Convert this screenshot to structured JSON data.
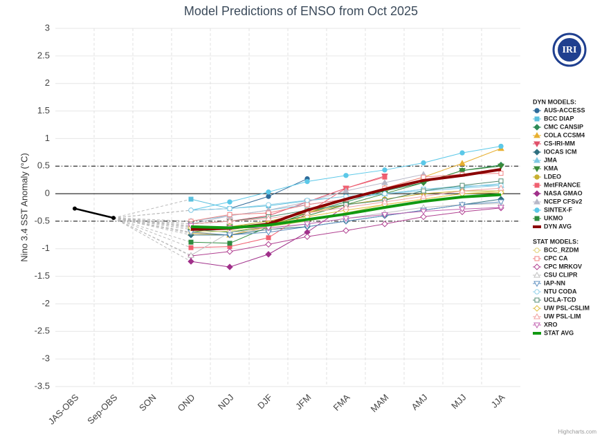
{
  "chart_data": {
    "type": "line",
    "title": "Model Predictions of ENSO from Oct 2025",
    "y_label": "Nino 3.4 SST Anomaly (°C)",
    "credit": "Highcharts.com",
    "logo_text": "IRI",
    "categories": [
      "JAS-OBS",
      "Sep-OBS",
      "SON",
      "OND",
      "NDJ",
      "DJF",
      "JFM",
      "FMA",
      "MAM",
      "AMJ",
      "MJJ",
      "JJA"
    ],
    "ylim": [
      -3.5,
      3
    ],
    "yticks": [
      3,
      2.5,
      2,
      1.5,
      1,
      0.5,
      0,
      -0.5,
      -1,
      -1.5,
      -2,
      -2.5,
      -3,
      -3.5
    ],
    "grid": true,
    "plot_lines": [
      {
        "value": 0,
        "style": "solid"
      },
      {
        "value": 0.5,
        "style": "dashdot"
      },
      {
        "value": -0.5,
        "style": "dashdot"
      }
    ],
    "observed": {
      "color": "#000000",
      "values": [
        -0.27,
        -0.44,
        null,
        null,
        null,
        null,
        null,
        null,
        null,
        null,
        null,
        null
      ]
    },
    "series_groups": [
      {
        "title": "DYN MODELS:",
        "series": [
          {
            "name": "AUS-ACCESS",
            "color": "#2f6b9a",
            "marker": "circle",
            "filled": true,
            "values": [
              null,
              null,
              null,
              -0.3,
              -0.27,
              -0.05,
              0.27,
              null,
              null,
              null,
              null,
              null
            ]
          },
          {
            "name": "BCC DIAP",
            "color": "#5bc0de",
            "marker": "square",
            "filled": true,
            "values": [
              null,
              null,
              null,
              -0.1,
              -0.27,
              -0.22,
              -0.13,
              -0.05,
              0.0,
              0.08,
              0.12,
              0.18
            ]
          },
          {
            "name": "CMC CANSIP",
            "color": "#2e8b57",
            "marker": "diamond",
            "filled": true,
            "values": [
              null,
              null,
              null,
              -0.65,
              -0.7,
              -0.6,
              -0.35,
              -0.15,
              0.05,
              0.2,
              0.42,
              0.52
            ]
          },
          {
            "name": "COLA CCSM4",
            "color": "#e8b030",
            "marker": "triangle",
            "filled": true,
            "values": [
              null,
              null,
              null,
              -0.72,
              -0.75,
              -0.6,
              -0.35,
              -0.1,
              0.1,
              0.3,
              0.55,
              0.82
            ]
          },
          {
            "name": "CS-IRI-MM",
            "color": "#e0506a",
            "marker": "triangle-down",
            "filled": true,
            "values": [
              null,
              null,
              null,
              -0.55,
              -0.5,
              -0.4,
              -0.15,
              0.1,
              0.32,
              null,
              null,
              null
            ]
          },
          {
            "name": "IOCAS ICM",
            "color": "#307080",
            "marker": "diamond",
            "filled": true,
            "values": [
              null,
              null,
              null,
              -0.75,
              -0.75,
              -0.65,
              -0.6,
              -0.5,
              -0.4,
              -0.3,
              -0.2,
              -0.1
            ]
          },
          {
            "name": "JMA",
            "color": "#7ec8e3",
            "marker": "triangle",
            "filled": true,
            "values": [
              null,
              null,
              null,
              -0.5,
              -0.4,
              -0.3,
              -0.2,
              -0.1,
              0.0,
              0.05,
              0.1,
              0.15
            ]
          },
          {
            "name": "KMA",
            "color": "#3a8a3a",
            "marker": "triangle-down",
            "filled": true,
            "values": [
              null,
              null,
              null,
              -0.7,
              -0.6,
              -0.55,
              -0.4,
              -0.2,
              0.0,
              0.2,
              0.42,
              0.5
            ]
          },
          {
            "name": "LDEO",
            "color": "#c8b030",
            "marker": "circle",
            "filled": true,
            "values": [
              null,
              null,
              null,
              -0.6,
              -0.6,
              -0.5,
              -0.35,
              -0.2,
              -0.1,
              0.0,
              0.05,
              0.05
            ]
          },
          {
            "name": "MetFRANCE",
            "color": "#f06070",
            "marker": "square",
            "filled": true,
            "values": [
              null,
              null,
              null,
              -0.98,
              -0.96,
              -0.8,
              -0.35,
              0.1,
              0.3,
              null,
              null,
              null
            ]
          },
          {
            "name": "NASA GMAO",
            "color": "#a0308a",
            "marker": "diamond",
            "filled": true,
            "values": [
              null,
              null,
              null,
              -1.23,
              -1.33,
              -1.1,
              -0.7,
              -0.22,
              null,
              null,
              null,
              null
            ]
          },
          {
            "name": "NCEP CFSv2",
            "color": "#b8b8c8",
            "marker": "triangle",
            "filled": true,
            "values": [
              null,
              null,
              null,
              -0.55,
              -0.4,
              -0.3,
              -0.15,
              0.05,
              0.2,
              0.35,
              null,
              null
            ]
          },
          {
            "name": "SINTEX-F",
            "color": "#5bc8e8",
            "marker": "circle",
            "filled": true,
            "values": [
              null,
              null,
              null,
              -0.3,
              -0.15,
              0.03,
              0.22,
              0.33,
              0.43,
              0.56,
              0.74,
              0.86
            ]
          },
          {
            "name": "UKMO",
            "color": "#2e8b3e",
            "marker": "square",
            "filled": true,
            "values": [
              null,
              null,
              null,
              -0.88,
              -0.9,
              -0.6,
              -0.35,
              null,
              null,
              null,
              null,
              null
            ]
          },
          {
            "name": "DYN AVG",
            "color": "#8b0000",
            "marker": "none",
            "width": 4,
            "values": [
              null,
              null,
              null,
              -0.65,
              -0.63,
              -0.55,
              -0.3,
              -0.1,
              0.08,
              0.24,
              0.33,
              0.44
            ]
          }
        ]
      },
      {
        "title": "STAT MODELS:",
        "series": [
          {
            "name": "BCC_RZDM",
            "color": "#e0d070",
            "marker": "circle",
            "filled": false,
            "values": [
              null,
              null,
              null,
              -0.7,
              -0.68,
              -0.6,
              -0.5,
              -0.35,
              -0.2,
              -0.1,
              0.0,
              0.05
            ]
          },
          {
            "name": "CPC CA",
            "color": "#f08080",
            "marker": "square",
            "filled": false,
            "values": [
              null,
              null,
              null,
              -0.5,
              -0.38,
              -0.35,
              -0.2,
              -0.1,
              0.1,
              0.3,
              0.35,
              0.37
            ]
          },
          {
            "name": "CPC MRKOV",
            "color": "#b04090",
            "marker": "diamond",
            "filled": false,
            "values": [
              null,
              null,
              null,
              -1.13,
              -1.05,
              -0.92,
              -0.78,
              -0.67,
              -0.55,
              -0.42,
              -0.33,
              -0.26
            ]
          },
          {
            "name": "CSU CLIPR",
            "color": "#c0c0c0",
            "marker": "triangle",
            "filled": false,
            "values": [
              null,
              null,
              null,
              -1.12,
              -0.7,
              -0.65,
              -0.55,
              -0.45,
              -0.35,
              -0.25,
              -0.2,
              -0.18
            ]
          },
          {
            "name": "IAP-NN",
            "color": "#6090c0",
            "marker": "triangle-down",
            "filled": false,
            "values": [
              null,
              null,
              null,
              -0.7,
              -0.75,
              -0.7,
              -0.6,
              -0.5,
              -0.4,
              -0.3,
              -0.2,
              -0.15
            ]
          },
          {
            "name": "NTU CODA",
            "color": "#90d0e8",
            "marker": "circle",
            "filled": false,
            "values": [
              null,
              null,
              null,
              -0.3,
              -0.27,
              -0.2,
              -0.12,
              -0.05,
              0.0,
              0.08,
              0.14,
              0.15
            ]
          },
          {
            "name": "UCLA-TCD",
            "color": "#508a70",
            "marker": "square",
            "filled": false,
            "values": [
              null,
              null,
              null,
              -0.55,
              -0.5,
              -0.42,
              -0.3,
              -0.2,
              -0.12,
              0.05,
              0.15,
              0.23
            ]
          },
          {
            "name": "UW PSL-CSLIM",
            "color": "#e0c040",
            "marker": "diamond",
            "filled": false,
            "values": [
              null,
              null,
              null,
              -0.62,
              -0.6,
              -0.55,
              -0.42,
              -0.3,
              -0.2,
              -0.1,
              0.0,
              0.02
            ]
          },
          {
            "name": "UW PSL-LIM",
            "color": "#f0a0a0",
            "marker": "triangle",
            "filled": false,
            "values": [
              null,
              null,
              null,
              -0.55,
              -0.5,
              -0.45,
              -0.35,
              -0.25,
              -0.15,
              -0.05,
              0.05,
              0.1
            ]
          },
          {
            "name": "XRO",
            "color": "#c060b0",
            "marker": "triangle-down",
            "filled": false,
            "values": [
              null,
              null,
              null,
              -0.58,
              -0.62,
              -0.62,
              -0.55,
              -0.45,
              -0.38,
              -0.32,
              -0.28,
              -0.25
            ]
          },
          {
            "name": "STAT AVG",
            "color": "#119911",
            "marker": "none",
            "width": 4,
            "values": [
              null,
              null,
              null,
              -0.6,
              -0.62,
              -0.57,
              -0.47,
              -0.37,
              -0.25,
              -0.14,
              -0.06,
              -0.02
            ]
          }
        ]
      }
    ]
  }
}
